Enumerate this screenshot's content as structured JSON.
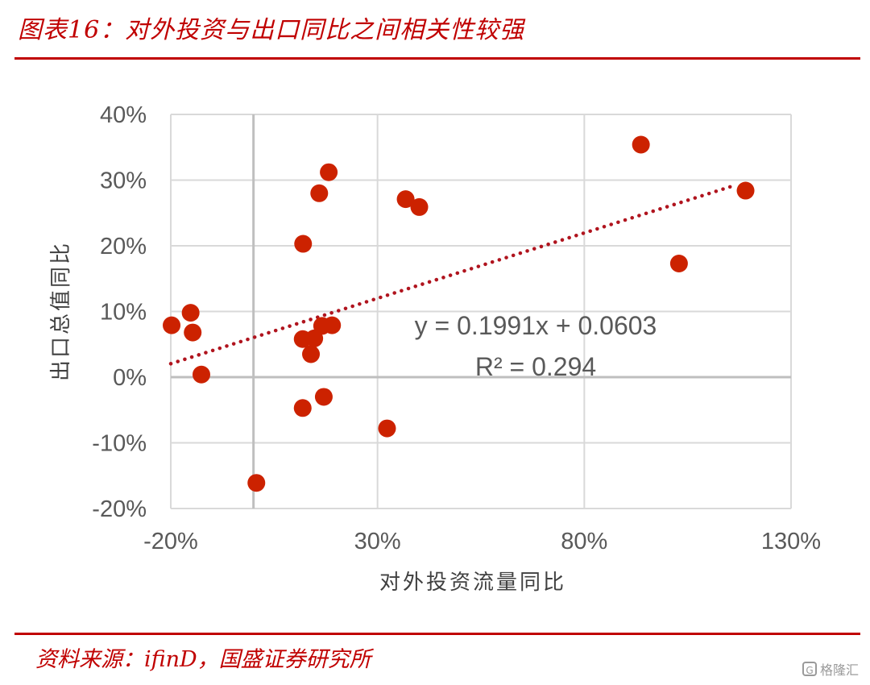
{
  "header": {
    "title": "图表16：对外投资与出口同比之间相关性较强"
  },
  "footer": {
    "source": "资料来源：ifinD，国盛证券研究所"
  },
  "watermark": {
    "text": "格隆汇",
    "icon": "g-logo-icon"
  },
  "colors": {
    "accent": "#c00000",
    "point": "#cc2200",
    "trendline": "#b0141e",
    "grid": "#d9d9d9",
    "axis": "#bfbfbf"
  },
  "chart_data": {
    "type": "scatter",
    "xlabel": "对外投资流量同比",
    "ylabel": "出口总值同比",
    "xlim": [
      -0.2,
      1.3
    ],
    "ylim": [
      -0.2,
      0.4
    ],
    "x_ticks": [
      -0.2,
      0.3,
      0.8,
      1.3
    ],
    "x_tick_labels": [
      "-20%",
      "30%",
      "80%",
      "130%"
    ],
    "y_ticks": [
      -0.2,
      -0.1,
      0,
      0.1,
      0.2,
      0.3,
      0.4
    ],
    "y_tick_labels": [
      "-20%",
      "-10%",
      "0%",
      "10%",
      "20%",
      "30%",
      "40%"
    ],
    "x_zero_line": 0,
    "grid": true,
    "points": [
      {
        "x": -0.198,
        "y": 0.079
      },
      {
        "x": -0.152,
        "y": 0.098
      },
      {
        "x": -0.147,
        "y": 0.068
      },
      {
        "x": -0.126,
        "y": 0.004
      },
      {
        "x": 0.007,
        "y": -0.161
      },
      {
        "x": 0.12,
        "y": 0.203
      },
      {
        "x": 0.119,
        "y": 0.058
      },
      {
        "x": 0.119,
        "y": -0.047
      },
      {
        "x": 0.139,
        "y": 0.035
      },
      {
        "x": 0.147,
        "y": 0.059
      },
      {
        "x": 0.159,
        "y": 0.28
      },
      {
        "x": 0.166,
        "y": 0.078
      },
      {
        "x": 0.17,
        "y": -0.03
      },
      {
        "x": 0.182,
        "y": 0.312
      },
      {
        "x": 0.19,
        "y": 0.079
      },
      {
        "x": 0.323,
        "y": -0.078
      },
      {
        "x": 0.368,
        "y": 0.271
      },
      {
        "x": 0.401,
        "y": 0.259
      },
      {
        "x": 0.937,
        "y": 0.354
      },
      {
        "x": 1.029,
        "y": 0.173
      },
      {
        "x": 1.19,
        "y": 0.284
      }
    ],
    "trendline": {
      "slope": 0.1991,
      "intercept": 0.0603,
      "x_range": [
        -0.2,
        1.16
      ],
      "equation": "y = 0.1991x + 0.0603",
      "r2": "R² = 0.294"
    }
  }
}
